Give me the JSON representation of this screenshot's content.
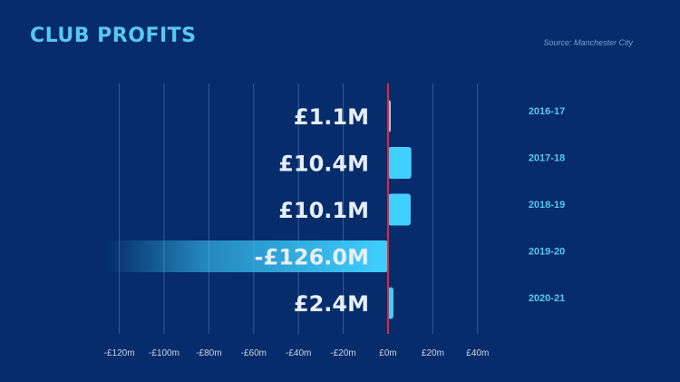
{
  "title": "CLUB PROFITS",
  "source": "Source: Manchester City",
  "chart_data": {
    "type": "bar",
    "orientation": "horizontal",
    "categories": [
      "2016-17",
      "2017-18",
      "2018-19",
      "2019-20",
      "2020-21"
    ],
    "values": [
      1.1,
      10.4,
      10.1,
      -126.0,
      2.4
    ],
    "data_labels": [
      "£1.1M",
      "£10.4M",
      "£10.1M",
      "-£126.0M",
      "£2.4M"
    ],
    "xlim": [
      -140,
      50
    ],
    "xticks": [
      -120,
      -100,
      -80,
      -60,
      -40,
      -20,
      0,
      20,
      40
    ],
    "xtick_labels": [
      "-£120m",
      "-£100m",
      "-£80m",
      "-£60m",
      "-£40m",
      "-£20m",
      "£0m",
      "£20m",
      "£40m"
    ],
    "grid": true,
    "colors": {
      "background": "#062c6b",
      "bar": "#3fd0ff",
      "bar_small": "#a9c4dc",
      "grid": "#3a5a94",
      "zero_line": "#e0283c",
      "label": "#e6eef8",
      "category": "#57c8ee",
      "tick": "#cfd8e6"
    }
  }
}
